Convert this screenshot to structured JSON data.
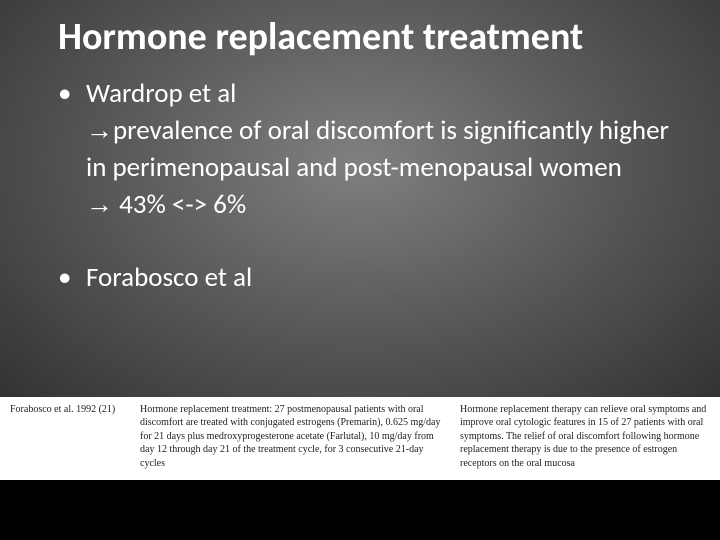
{
  "title": "Hormone replacement treatment",
  "bullet1": {
    "lead": "Wardrop et al",
    "arrow1": "→",
    "line1_part": "prevalence of oral discomfort is significantly higher in perimenopausal and post-menopausal women",
    "arrow2": "→",
    "line2_part": " 43% <-> 6%"
  },
  "bullet2": {
    "lead": "Forabosco et al"
  },
  "citation": {
    "col1": "Forabosco et al. 1992 (21)",
    "col2": "Hormone replacement treatment: 27 postmenopausal patients with oral discomfort are treated with conjugated estrogens (Premarin), 0.625 mg/day for 21 days plus medroxyprogesterone acetate (Farlutal), 10 mg/day from day 12 through day 21 of the treatment cycle, for 3 consecutive 21-day cycles",
    "col3": "Hormone replacement therapy can relieve oral symptoms and improve oral cytologic features in 15 of 27 patients with oral symptoms. The relief of oral discomfort following hormone replacement therapy is due to the presence of estrogen receptors on the oral mucosa"
  },
  "colors": {
    "text": "#ffffff",
    "citation_bg": "#ffffff",
    "citation_text": "#222222",
    "bg_center": "#808080",
    "bg_edge": "#000000"
  }
}
